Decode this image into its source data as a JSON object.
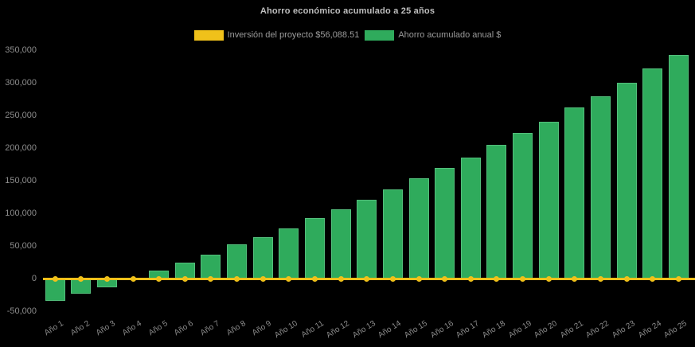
{
  "title": "Ahorro económico acumulado a 25 años",
  "legend": [
    {
      "label": "Inversión del proyecto $56,088.51",
      "color": "#f0c11a"
    },
    {
      "label": "Ahorro acumulado anual $",
      "color": "#2fab5c"
    }
  ],
  "chart_data": {
    "type": "bar",
    "title": "Ahorro económico acumulado a 25 años",
    "background": "#000000",
    "legend_position": "top-center",
    "grid": false,
    "xlabel": "",
    "ylabel": "",
    "ylim": [
      -50000,
      350000
    ],
    "ytick_interval": 50000,
    "yticks": [
      {
        "value": -50000,
        "label": "-50,000"
      },
      {
        "value": 0,
        "label": "0"
      },
      {
        "value": 50000,
        "label": "50,000"
      },
      {
        "value": 100000,
        "label": "100,000"
      },
      {
        "value": 150000,
        "label": "150,000"
      },
      {
        "value": 200000,
        "label": "200,000"
      },
      {
        "value": 250000,
        "label": "250,000"
      },
      {
        "value": 300000,
        "label": "300,000"
      },
      {
        "value": 350000,
        "label": "350,000"
      }
    ],
    "categories": [
      "Año 1",
      "Año 2",
      "Año 3",
      "Año 4",
      "Año 5",
      "Año 6",
      "Año 7",
      "Año 8",
      "Año 9",
      "Año 10",
      "Año 11",
      "Año 12",
      "Año 13",
      "Año 14",
      "Año 15",
      "Año 16",
      "Año 17",
      "Año 18",
      "Año 19",
      "Año 20",
      "Año 21",
      "Año 22",
      "Año 23",
      "Año 24",
      "Año 25"
    ],
    "series": [
      {
        "name": "Ahorro acumulado anual $",
        "type": "bar",
        "color": "#2fab5c",
        "border_color": "rgba(130,215,165,0.45)",
        "values": [
          -34000,
          -24000,
          -14000,
          1500,
          12000,
          24000,
          37000,
          52000,
          63000,
          77000,
          93000,
          106000,
          121000,
          137000,
          154000,
          170000,
          186000,
          205000,
          223000,
          241000,
          262000,
          280000,
          300000,
          322000,
          343000
        ]
      },
      {
        "name": "Inversión del proyecto $56,088.51",
        "type": "line",
        "color": "#f0c11a",
        "marker": "circle",
        "values": [
          0,
          0,
          0,
          0,
          0,
          0,
          0,
          0,
          0,
          0,
          0,
          0,
          0,
          0,
          0,
          0,
          0,
          0,
          0,
          0,
          0,
          0,
          0,
          0,
          0
        ]
      }
    ]
  }
}
